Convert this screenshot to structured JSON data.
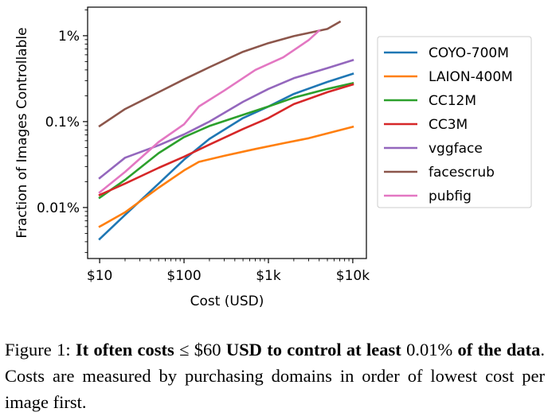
{
  "chart_data": {
    "type": "line",
    "xlabel": "Cost (USD)",
    "ylabel": "Fraction of Images Controllable",
    "x_scale": "log",
    "y_scale": "log",
    "xlim": [
      7.2,
      14500
    ],
    "ylim": [
      2.55e-05,
      0.0215
    ],
    "x_ticks": [
      {
        "value": 10,
        "label": "$10"
      },
      {
        "value": 100,
        "label": "$100"
      },
      {
        "value": 1000,
        "label": "$1k"
      },
      {
        "value": 10000,
        "label": "$10k"
      }
    ],
    "y_ticks": [
      {
        "value": 0.0001,
        "label": "0.01%"
      },
      {
        "value": 0.001,
        "label": "0.1%"
      },
      {
        "value": 0.01,
        "label": "1%"
      }
    ],
    "legend_position": "right, outside plot area",
    "grid": false,
    "series": [
      {
        "name": "COYO-700M",
        "color": "#1f77b4",
        "x": [
          10,
          20,
          50,
          100,
          200,
          500,
          1000,
          2000,
          5000,
          10000
        ],
        "y": [
          4.3e-05,
          8.2e-05,
          0.00019,
          0.00036,
          0.00063,
          0.0011,
          0.0015,
          0.0021,
          0.0029,
          0.0036
        ]
      },
      {
        "name": "LAION-400M",
        "color": "#ff7f0e",
        "x": [
          10,
          20,
          50,
          100,
          150,
          300,
          700,
          1500,
          3000,
          10000
        ],
        "y": [
          6e-05,
          8.8e-05,
          0.00017,
          0.00027,
          0.00034,
          0.0004,
          0.00048,
          0.00056,
          0.00064,
          0.00087
        ]
      },
      {
        "name": "CC12M",
        "color": "#2ca02c",
        "x": [
          10,
          20,
          50,
          100,
          200,
          500,
          1000,
          2000,
          5000,
          10000
        ],
        "y": [
          0.00013,
          0.00021,
          0.00043,
          0.00066,
          0.00089,
          0.0012,
          0.0015,
          0.0019,
          0.0024,
          0.0028
        ]
      },
      {
        "name": "CC3M",
        "color": "#d62728",
        "x": [
          10,
          20,
          50,
          100,
          200,
          500,
          1000,
          2000,
          5000,
          10000
        ],
        "y": [
          0.00014,
          0.00019,
          0.00029,
          0.00039,
          0.00054,
          0.00082,
          0.0011,
          0.0016,
          0.0022,
          0.0027
        ]
      },
      {
        "name": "vggface",
        "color": "#9467bd",
        "x": [
          10,
          20,
          50,
          100,
          200,
          500,
          1000,
          2000,
          5000,
          10000
        ],
        "y": [
          0.00022,
          0.00038,
          0.00053,
          0.00071,
          0.001,
          0.0017,
          0.0024,
          0.0032,
          0.0042,
          0.0052
        ]
      },
      {
        "name": "facescrub",
        "color": "#8c564b",
        "x": [
          10,
          20,
          50,
          100,
          200,
          500,
          1000,
          2000,
          5000,
          7000
        ],
        "y": [
          0.00089,
          0.0014,
          0.0022,
          0.0031,
          0.0043,
          0.0065,
          0.0082,
          0.0099,
          0.012,
          0.0145
        ]
      },
      {
        "name": "pubfig",
        "color": "#e377c2",
        "x": [
          10,
          20,
          50,
          100,
          150,
          300,
          700,
          1500,
          3000,
          4000
        ],
        "y": [
          0.00015,
          0.00026,
          0.00058,
          0.00093,
          0.0015,
          0.0023,
          0.004,
          0.0056,
          0.0089,
          0.0115
        ]
      }
    ]
  },
  "caption": {
    "label": "Figure 1:",
    "bold_part1": "It often costs",
    "le_symbol": "≤",
    "amount": "$60",
    "bold_part2": "USD to control at least",
    "percent": "0.01%",
    "bold_part3": "of the data",
    "rest": ". Costs are measured by purchasing domains in order of lowest cost per image first."
  }
}
